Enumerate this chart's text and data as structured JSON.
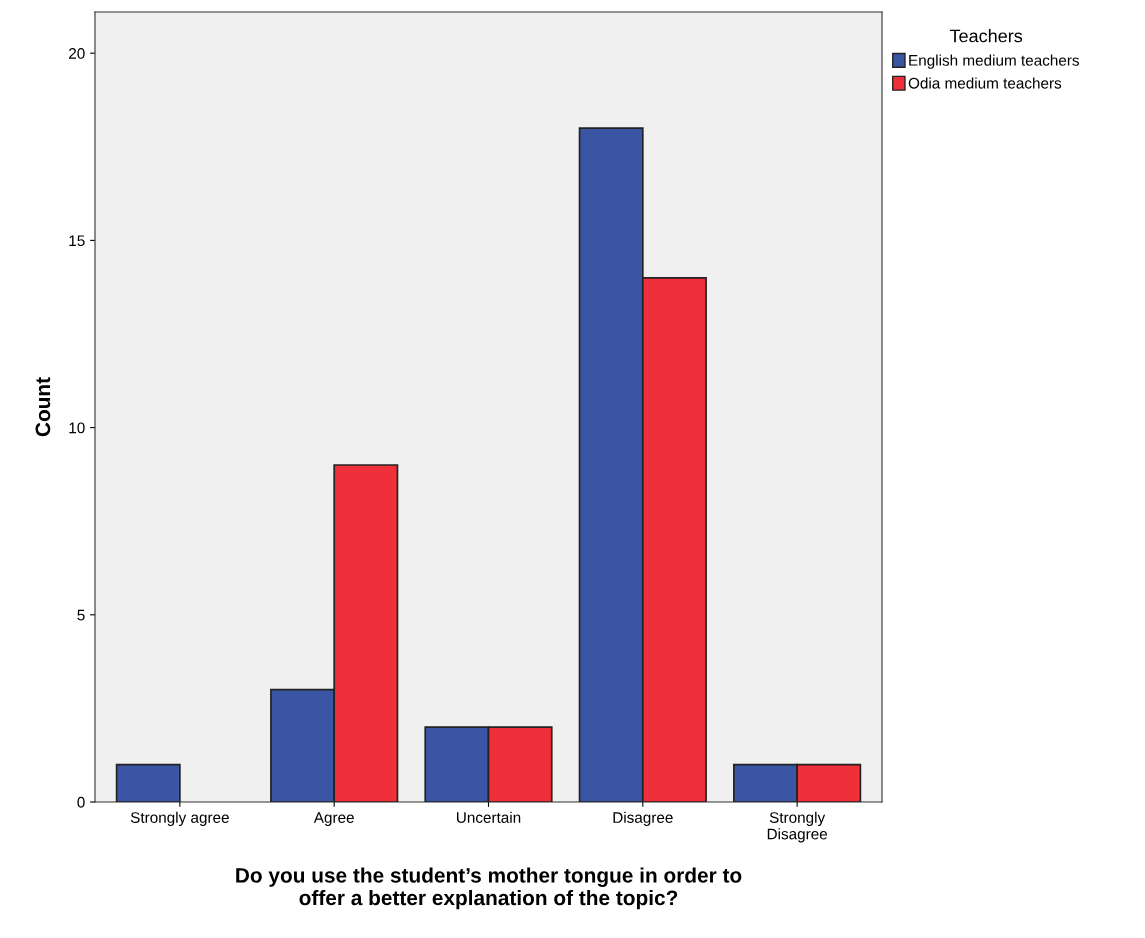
{
  "chart_data": {
    "type": "bar",
    "xlabel": "Do you use the student’s mother tongue in order to\noffer a better explanation of the topic?",
    "ylabel": "Count",
    "legend_title": "Teachers",
    "categories": [
      "Strongly agree",
      "Agree",
      "Uncertain",
      "Disagree",
      "Strongly\nDisagree"
    ],
    "series": [
      {
        "name": "English medium teachers",
        "color": "#3a55a4",
        "values": [
          1,
          3,
          2,
          18,
          1
        ]
      },
      {
        "name": "Odia medium teachers",
        "color": "#ef2f3a",
        "values": [
          null,
          9,
          2,
          14,
          1
        ]
      }
    ],
    "ylim": [
      0,
      21.1
    ],
    "yticks": [
      0,
      5,
      10,
      15,
      20
    ],
    "grid": false,
    "legend": "top right"
  }
}
